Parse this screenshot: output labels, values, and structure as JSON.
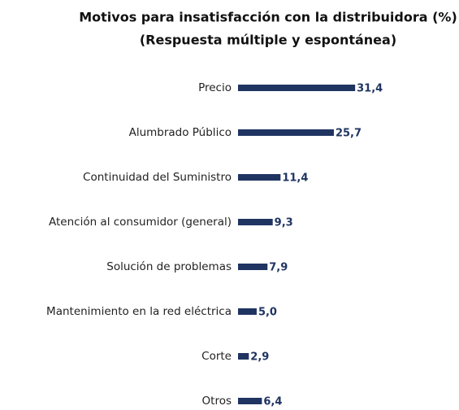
{
  "chart_data": {
    "type": "barh",
    "title": "Motivos para insatisfacción con la distribuidora (%)",
    "subtitle": "(Respuesta múltiple y espontánea)",
    "categories": [
      "Precio",
      "Alumbrado Público",
      "Continuidad del Suministro",
      "Atención al consumidor (general)",
      "Solución de problemas",
      "Mantenimiento en la red eléctrica",
      "Corte",
      "Otros"
    ],
    "values": [
      31.4,
      25.7,
      11.4,
      9.3,
      7.9,
      5.0,
      2.9,
      6.4
    ],
    "value_labels": [
      "31,4",
      "25,7",
      "11,4",
      "9,3",
      "7,9",
      "5,0",
      "2,9",
      "6,4"
    ],
    "color": "#1f3461"
  }
}
